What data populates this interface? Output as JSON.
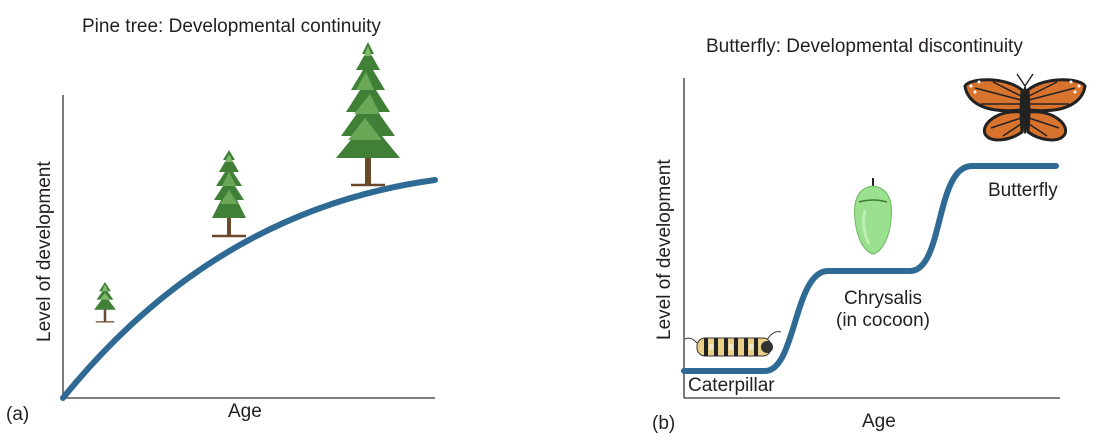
{
  "panel_a": {
    "title": "Pine tree: Developmental continuity",
    "ylabel": "Level of development",
    "xlabel": "Age",
    "panel_label": "(a)",
    "images": [
      "small-pine-tree",
      "medium-pine-tree",
      "large-pine-tree"
    ]
  },
  "panel_b": {
    "title": "Butterfly: Developmental discontinuity",
    "ylabel": "Level of development",
    "xlabel": "Age",
    "panel_label": "(b)",
    "stages": {
      "caterpillar": "Caterpillar",
      "chrysalis_line1": "Chrysalis",
      "chrysalis_line2": "(in cocoon)",
      "butterfly": "Butterfly"
    },
    "images": [
      "caterpillar",
      "chrysalis",
      "monarch-butterfly"
    ]
  },
  "colors": {
    "curve": "#2e6a93",
    "axis": "#333333",
    "tree_dark": "#3f7f36",
    "tree_light": "#7fb86a",
    "trunk": "#6b4a2b",
    "chrysalis": "#9be08f",
    "butterfly_orange": "#d8732e",
    "butterfly_black": "#222222"
  }
}
